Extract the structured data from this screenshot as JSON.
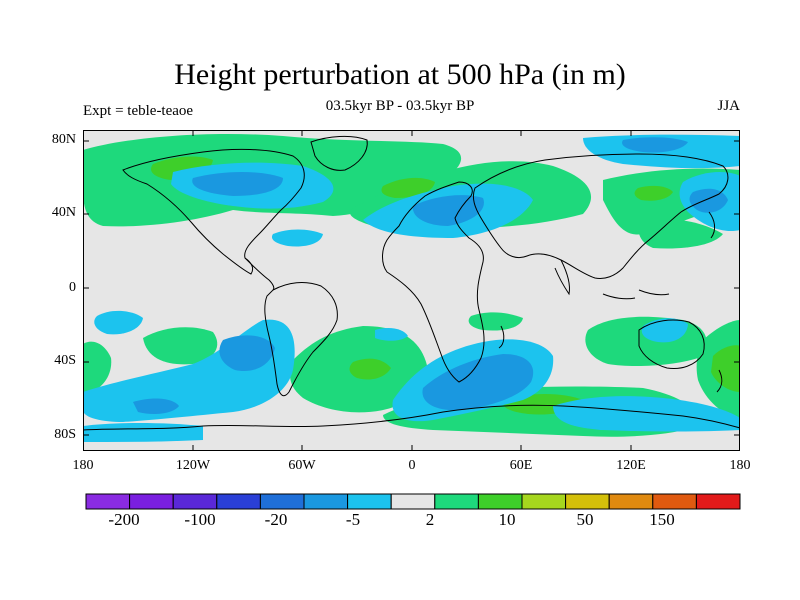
{
  "title": "Height perturbation at 500 hPa (in m)",
  "subtitle": "03.5kyr BP - 03.5kyr BP",
  "left_label": "Expt = teble-teaoe",
  "right_label": "JJA",
  "lat_labels": [
    "80N",
    "40N",
    "0",
    "40S",
    "80S"
  ],
  "lon_labels": [
    "180",
    "120W",
    "60W",
    "0",
    "60E",
    "120E",
    "180"
  ],
  "colorbar": {
    "colors": [
      "#8a2be2",
      "#7a1fe0",
      "#5a28d8",
      "#2a3fd6",
      "#1f6fd8",
      "#1a98e0",
      "#1cc3ee",
      "#e6e6e6",
      "#1ed97c",
      "#3ecf2a",
      "#a6d61e",
      "#d4c00a",
      "#e08a10",
      "#e05a10",
      "#e21a1a"
    ],
    "tick_labels": [
      "-200",
      "-100",
      "-20",
      "-5",
      "2",
      "10",
      "50",
      "150"
    ]
  },
  "map": {
    "background_color": "#e6e6e6",
    "coastline_color": "#000000",
    "contour_colors": {
      "light_blue": "#1cc3ee",
      "mid_blue": "#1a98e0",
      "dark_blue": "#1f6fd8",
      "green": "#1ed97c",
      "dark_green": "#3ecf2a"
    }
  }
}
